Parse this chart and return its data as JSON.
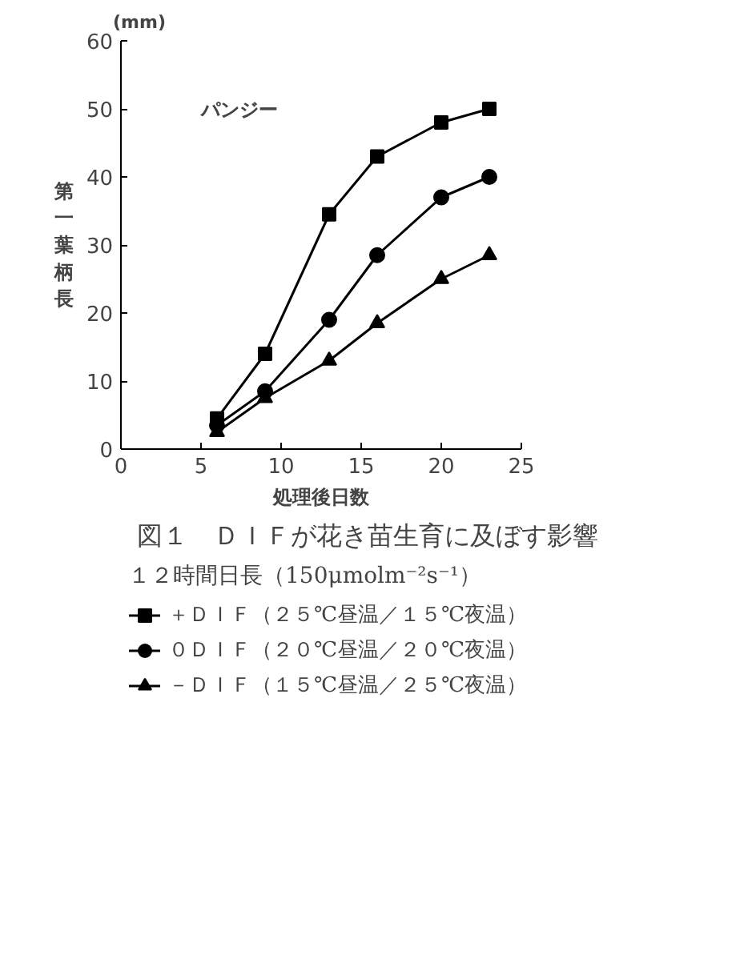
{
  "chart_data": {
    "type": "line",
    "title": "図１　ＤＩＦが花き苗生育に及ぼす影響",
    "xlabel": "処理後日数",
    "ylabel": "第一葉柄長",
    "annotations": [
      "(mm)",
      "パンジー"
    ],
    "legend_title": "１２時間日長（150μmolm⁻²s⁻¹）",
    "x": [
      6,
      9,
      13,
      16,
      20,
      23
    ],
    "series": [
      {
        "name": "＋ＤＩＦ（２５℃昼温／１５℃夜温）",
        "color": "#000000",
        "marker": "square",
        "values": [
          4.5,
          14,
          34.5,
          43,
          48,
          50
        ]
      },
      {
        "name": "０ＤＩＦ（２０℃昼温／２０℃夜温）",
        "color": "#000000",
        "marker": "circle",
        "values": [
          3.5,
          8.5,
          19,
          28.5,
          37,
          40
        ]
      },
      {
        "name": "－ＤＩＦ（１５℃昼温／２５℃夜温）",
        "color": "#000000",
        "marker": "triangle",
        "values": [
          2.5,
          7.5,
          13,
          18.5,
          25,
          28.5
        ]
      }
    ],
    "xlim": [
      0,
      25
    ],
    "ylim": [
      0,
      60
    ],
    "xticks": [
      0,
      5,
      10,
      15,
      20,
      25
    ],
    "yticks": [
      0,
      10,
      20,
      30,
      40,
      50,
      60
    ],
    "grid": false,
    "legend": "bottom",
    "line_style": "solid"
  }
}
